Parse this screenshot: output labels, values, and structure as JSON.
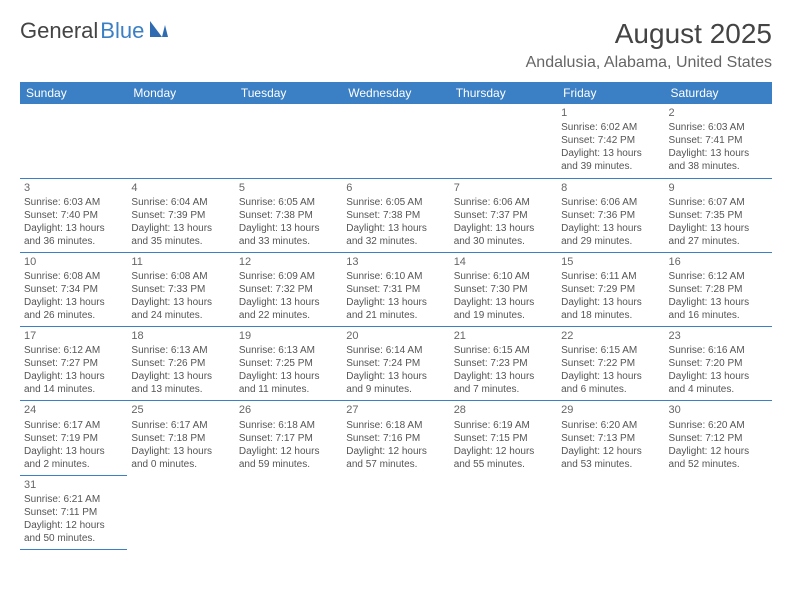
{
  "logo": {
    "text1": "General",
    "text2": "Blue"
  },
  "title": "August 2025",
  "location": "Andalusia, Alabama, United States",
  "colors": {
    "header_bg": "#3b7fc4",
    "header_text": "#ffffff",
    "border": "#3b7fc4",
    "text": "#555555",
    "title_text": "#444444",
    "location_text": "#666666"
  },
  "weekdays": [
    "Sunday",
    "Monday",
    "Tuesday",
    "Wednesday",
    "Thursday",
    "Friday",
    "Saturday"
  ],
  "weeks": [
    [
      null,
      null,
      null,
      null,
      null,
      {
        "n": "1",
        "rise": "6:02 AM",
        "set": "7:42 PM",
        "dayH": "13",
        "dayM": "39"
      },
      {
        "n": "2",
        "rise": "6:03 AM",
        "set": "7:41 PM",
        "dayH": "13",
        "dayM": "38"
      }
    ],
    [
      {
        "n": "3",
        "rise": "6:03 AM",
        "set": "7:40 PM",
        "dayH": "13",
        "dayM": "36"
      },
      {
        "n": "4",
        "rise": "6:04 AM",
        "set": "7:39 PM",
        "dayH": "13",
        "dayM": "35"
      },
      {
        "n": "5",
        "rise": "6:05 AM",
        "set": "7:38 PM",
        "dayH": "13",
        "dayM": "33"
      },
      {
        "n": "6",
        "rise": "6:05 AM",
        "set": "7:38 PM",
        "dayH": "13",
        "dayM": "32"
      },
      {
        "n": "7",
        "rise": "6:06 AM",
        "set": "7:37 PM",
        "dayH": "13",
        "dayM": "30"
      },
      {
        "n": "8",
        "rise": "6:06 AM",
        "set": "7:36 PM",
        "dayH": "13",
        "dayM": "29"
      },
      {
        "n": "9",
        "rise": "6:07 AM",
        "set": "7:35 PM",
        "dayH": "13",
        "dayM": "27"
      }
    ],
    [
      {
        "n": "10",
        "rise": "6:08 AM",
        "set": "7:34 PM",
        "dayH": "13",
        "dayM": "26"
      },
      {
        "n": "11",
        "rise": "6:08 AM",
        "set": "7:33 PM",
        "dayH": "13",
        "dayM": "24"
      },
      {
        "n": "12",
        "rise": "6:09 AM",
        "set": "7:32 PM",
        "dayH": "13",
        "dayM": "22"
      },
      {
        "n": "13",
        "rise": "6:10 AM",
        "set": "7:31 PM",
        "dayH": "13",
        "dayM": "21"
      },
      {
        "n": "14",
        "rise": "6:10 AM",
        "set": "7:30 PM",
        "dayH": "13",
        "dayM": "19"
      },
      {
        "n": "15",
        "rise": "6:11 AM",
        "set": "7:29 PM",
        "dayH": "13",
        "dayM": "18"
      },
      {
        "n": "16",
        "rise": "6:12 AM",
        "set": "7:28 PM",
        "dayH": "13",
        "dayM": "16"
      }
    ],
    [
      {
        "n": "17",
        "rise": "6:12 AM",
        "set": "7:27 PM",
        "dayH": "13",
        "dayM": "14"
      },
      {
        "n": "18",
        "rise": "6:13 AM",
        "set": "7:26 PM",
        "dayH": "13",
        "dayM": "13"
      },
      {
        "n": "19",
        "rise": "6:13 AM",
        "set": "7:25 PM",
        "dayH": "13",
        "dayM": "11"
      },
      {
        "n": "20",
        "rise": "6:14 AM",
        "set": "7:24 PM",
        "dayH": "13",
        "dayM": "9"
      },
      {
        "n": "21",
        "rise": "6:15 AM",
        "set": "7:23 PM",
        "dayH": "13",
        "dayM": "7"
      },
      {
        "n": "22",
        "rise": "6:15 AM",
        "set": "7:22 PM",
        "dayH": "13",
        "dayM": "6"
      },
      {
        "n": "23",
        "rise": "6:16 AM",
        "set": "7:20 PM",
        "dayH": "13",
        "dayM": "4"
      }
    ],
    [
      {
        "n": "24",
        "rise": "6:17 AM",
        "set": "7:19 PM",
        "dayH": "13",
        "dayM": "2"
      },
      {
        "n": "25",
        "rise": "6:17 AM",
        "set": "7:18 PM",
        "dayH": "13",
        "dayM": "0"
      },
      {
        "n": "26",
        "rise": "6:18 AM",
        "set": "7:17 PM",
        "dayH": "12",
        "dayM": "59"
      },
      {
        "n": "27",
        "rise": "6:18 AM",
        "set": "7:16 PM",
        "dayH": "12",
        "dayM": "57"
      },
      {
        "n": "28",
        "rise": "6:19 AM",
        "set": "7:15 PM",
        "dayH": "12",
        "dayM": "55"
      },
      {
        "n": "29",
        "rise": "6:20 AM",
        "set": "7:13 PM",
        "dayH": "12",
        "dayM": "53"
      },
      {
        "n": "30",
        "rise": "6:20 AM",
        "set": "7:12 PM",
        "dayH": "12",
        "dayM": "52"
      }
    ],
    [
      {
        "n": "31",
        "rise": "6:21 AM",
        "set": "7:11 PM",
        "dayH": "12",
        "dayM": "50"
      },
      null,
      null,
      null,
      null,
      null,
      null
    ]
  ]
}
